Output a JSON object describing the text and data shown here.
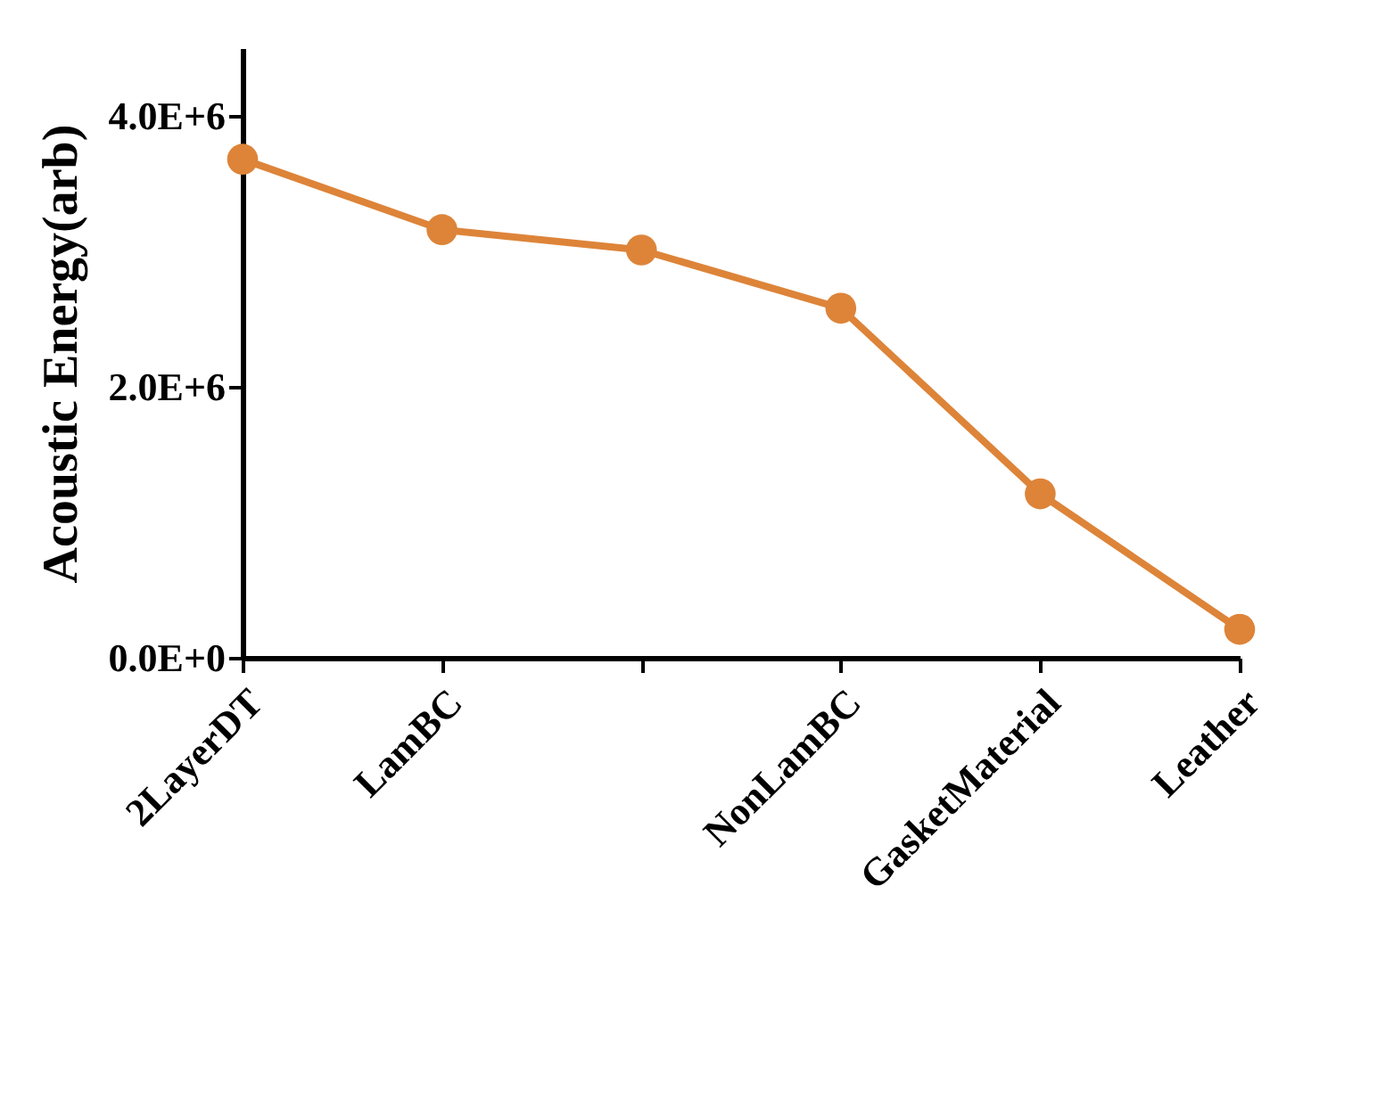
{
  "chart_data": {
    "type": "line",
    "ylabel": "Acoustic Energy(arb)",
    "categories": [
      "2LayerDT",
      "LamBC",
      null,
      "NonLamBC",
      "GasketMaterial",
      "Leather"
    ],
    "series": [
      {
        "color": "#dd8439",
        "values": [
          3680000,
          3160000,
          3010000,
          2580000,
          1210000,
          210000
        ]
      }
    ],
    "ylim": [
      0,
      4500000
    ],
    "yticks": [
      {
        "value": 0,
        "label": "0.0E+0"
      },
      {
        "value": 2000000,
        "label": "2.0E+6"
      },
      {
        "value": 4000000,
        "label": "4.0E+6"
      }
    ],
    "grid": false,
    "marker": "circle",
    "line_style": "solid",
    "legend": false
  }
}
